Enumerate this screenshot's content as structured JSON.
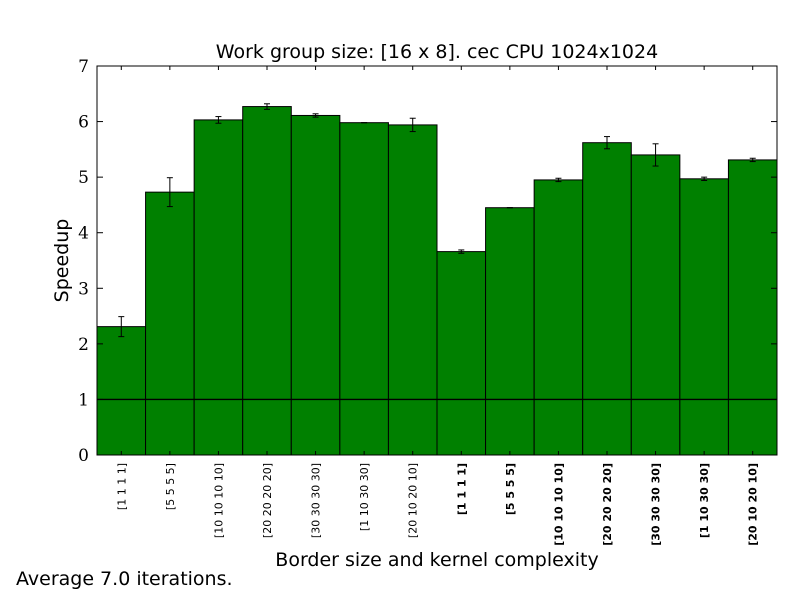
{
  "chart_data": {
    "type": "bar",
    "title": "Work group size: [16 x 8]. cec CPU 1024x1024",
    "xlabel": "Border size and kernel complexity",
    "ylabel": "Speedup",
    "ylim": [
      0,
      7
    ],
    "yticks": [
      "0",
      "1",
      "2",
      "3",
      "4",
      "5",
      "6",
      "7"
    ],
    "categories": [
      "[1 1 1 1]",
      "[5 5 5 5]",
      "[10 10 10 10]",
      "[20 20 20 20]",
      "[30 30 30 30]",
      "[1 10 30 30]",
      "[20 10 20 10]",
      "[1 1 1 1]",
      "[5 5 5 5]",
      "[10 10 10 10]",
      "[20 20 20 20]",
      "[30 30 30 30]",
      "[1 10 30 30]",
      "[20 10 20 10]"
    ],
    "bold_categories": [
      false,
      false,
      false,
      false,
      false,
      false,
      false,
      true,
      true,
      true,
      true,
      true,
      true,
      true
    ],
    "values": [
      2.31,
      4.73,
      6.03,
      6.27,
      6.11,
      5.98,
      5.94,
      3.66,
      4.45,
      4.95,
      5.62,
      5.4,
      4.97,
      5.31
    ],
    "errors": [
      0.18,
      0.26,
      0.06,
      0.05,
      0.03,
      0.0,
      0.12,
      0.03,
      0.0,
      0.03,
      0.11,
      0.2,
      0.03,
      0.03
    ],
    "reference_line": 1,
    "bar_color": "#008000",
    "grid": false
  },
  "footnote": "Average 7.0 iterations."
}
